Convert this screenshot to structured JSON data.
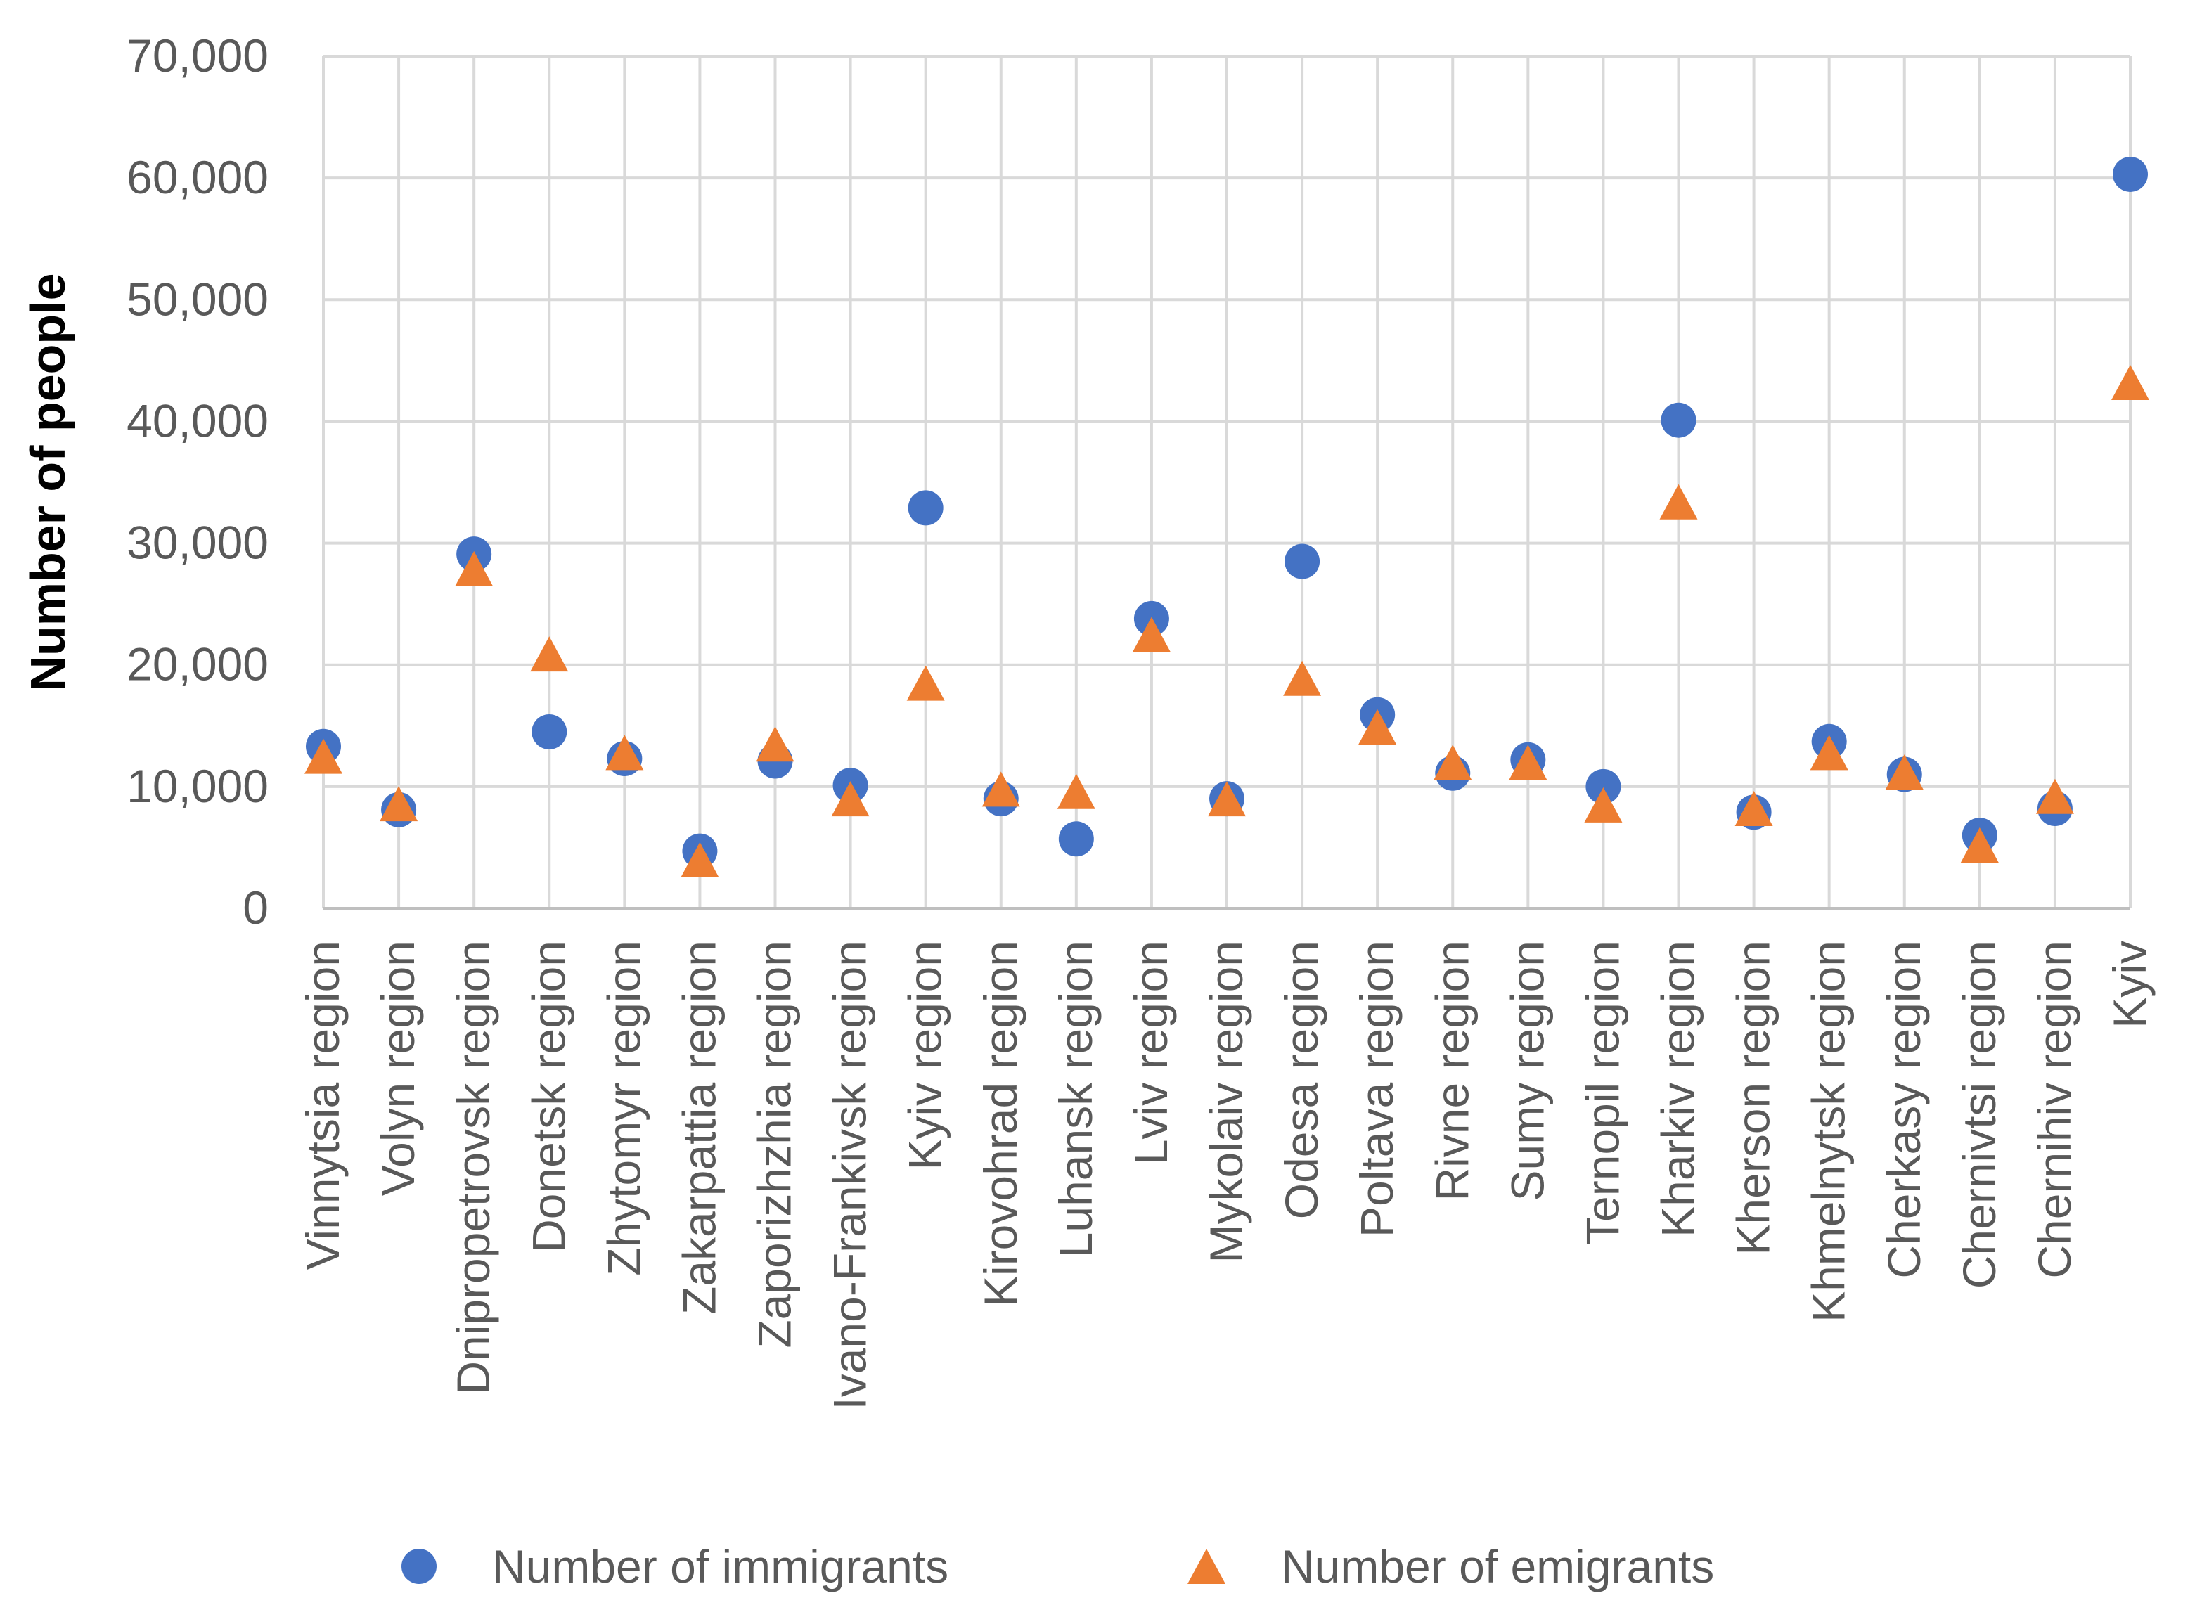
{
  "chart_data": {
    "type": "scatter",
    "title": "",
    "xlabel": "",
    "ylabel": "Number of people",
    "ylim": [
      0,
      70000
    ],
    "yticks": [
      0,
      10000,
      20000,
      30000,
      40000,
      50000,
      60000,
      70000
    ],
    "ytick_labels": [
      "0",
      "10,000",
      "20,000",
      "30,000",
      "40,000",
      "50,000",
      "60,000",
      "70,000"
    ],
    "grid": true,
    "legend_position": "bottom",
    "categories": [
      "Vinnytsia region",
      "Volyn region",
      "Dnipropetrovsk region",
      "Donetsk region",
      "Zhytomyr region",
      "Zakarpattia region",
      "Zaporizhzhia region",
      "Ivano-Frankivsk region",
      "Kyiv region",
      "Kirovohrad region",
      "Luhansk region",
      "Lviv region",
      "Mykolaiv region",
      "Odesa region",
      "Poltava region",
      "Rivne region",
      "Sumy region",
      "Ternopil region",
      "Kharkiv region",
      "Kherson region",
      "Khmelnytsk region",
      "Cherkasy region",
      "Chernivtsi region",
      "Chernihiv region",
      "Kyiv"
    ],
    "series": [
      {
        "name": "Number of immigrants",
        "marker": "circle",
        "color": "#4472C4",
        "values": [
          13300,
          8100,
          29100,
          14500,
          12300,
          4700,
          12100,
          10100,
          32900,
          9000,
          5700,
          23800,
          9000,
          28500,
          15900,
          11100,
          12200,
          10000,
          40100,
          7900,
          13700,
          11000,
          6000,
          8200,
          60300
        ]
      },
      {
        "name": "Number of emigrants",
        "marker": "triangle",
        "color": "#ED7D31",
        "values": [
          12500,
          8600,
          27900,
          20900,
          12800,
          4000,
          13500,
          9000,
          18500,
          9800,
          9600,
          22500,
          9000,
          18900,
          14900,
          12000,
          12000,
          8500,
          33400,
          8200,
          12800,
          11200,
          5200,
          9200,
          43200
        ]
      }
    ]
  }
}
